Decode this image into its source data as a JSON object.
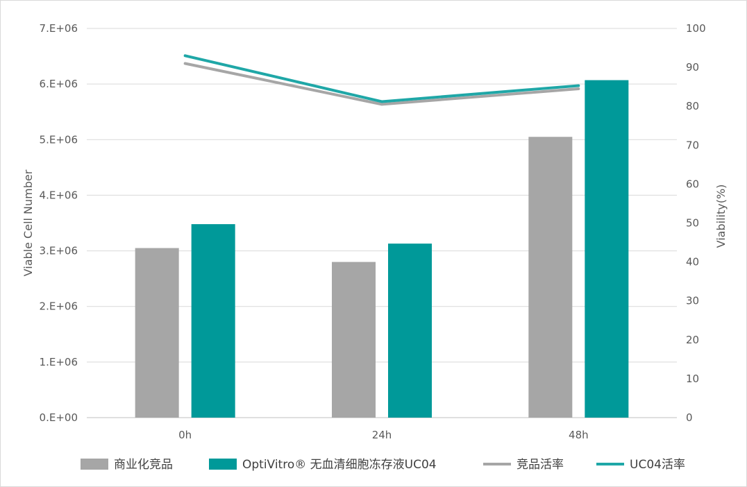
{
  "chart_data": {
    "type": "bar",
    "title": "",
    "categories": [
      "0h",
      "24h",
      "48h"
    ],
    "ylabel": "Viable Cell Number",
    "ylabel_right": "Viability(%)",
    "ylim": [
      0,
      7000000
    ],
    "ylim_right": [
      0,
      100
    ],
    "yticks": [
      "0.E+00",
      "1.E+06",
      "2.E+06",
      "3.E+06",
      "4.E+06",
      "5.E+06",
      "6.E+06",
      "7.E+06"
    ],
    "yticks_right": [
      "0",
      "10",
      "20",
      "30",
      "40",
      "50",
      "60",
      "70",
      "80",
      "90",
      "100"
    ],
    "grid": true,
    "legend_position": "bottom",
    "series": [
      {
        "name": "商业化竞品",
        "kind": "bar",
        "axis": "left",
        "color": "#a6a6a6",
        "values": [
          3050000,
          2800000,
          5050000
        ]
      },
      {
        "name": "OptiVitro® 无血清细胞冻存液UC04",
        "kind": "bar",
        "axis": "left",
        "color": "#009999",
        "values": [
          3480000,
          3130000,
          6070000
        ]
      },
      {
        "name": "竞品活率",
        "kind": "line",
        "axis": "right",
        "color": "#a6a6a6",
        "values": [
          91,
          80.5,
          84.5
        ]
      },
      {
        "name": "UC04活率",
        "kind": "line",
        "axis": "right",
        "color": "#1fa7a7",
        "values": [
          93,
          81.2,
          85.3
        ]
      }
    ]
  }
}
